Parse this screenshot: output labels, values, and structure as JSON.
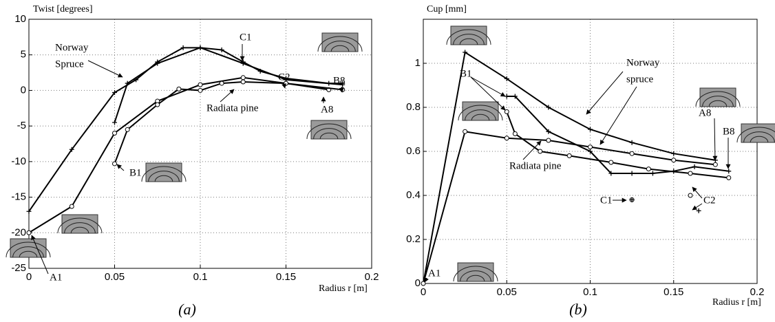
{
  "chart_data": [
    {
      "type": "line",
      "caption": "(a)",
      "ylabel": "Twist [degrees]",
      "xlabel": "Radius r  [m]",
      "xlim": [
        0,
        0.2
      ],
      "ylim": [
        -25,
        10
      ],
      "xticks": [
        0,
        0.05,
        0.1,
        0.15,
        0.2
      ],
      "yticks": [
        -25,
        -20,
        -15,
        -10,
        -5,
        0,
        5,
        10
      ],
      "grid": true,
      "color": "#000000",
      "series": [
        {
          "marker": "plus",
          "line": true,
          "x": [
            0,
            0.025,
            0.05,
            0.0625,
            0.075,
            0.09,
            0.1,
            0.1125,
            0.125,
            0.135,
            0.15,
            0.175,
            0.183
          ],
          "values": [
            -17,
            -8.3,
            -0.3,
            1.5,
            4,
            6,
            6,
            5.7,
            4,
            2.7,
            1.7,
            1.0,
            1.0
          ]
        },
        {
          "marker": "plus",
          "line": true,
          "x": [
            0.05,
            0.0575,
            0.075,
            0.1,
            0.125,
            0.15,
            0.183
          ],
          "values": [
            -4.5,
            1,
            3.8,
            6,
            3.8,
            1.5,
            0.8
          ]
        },
        {
          "marker": "circle",
          "line": true,
          "x": [
            0,
            0.025,
            0.05,
            0.075,
            0.1,
            0.125,
            0.15,
            0.175
          ],
          "values": [
            -20,
            -16.3,
            -6,
            -1.5,
            0.8,
            1.8,
            1,
            0.1
          ]
        },
        {
          "marker": "circle",
          "line": true,
          "x": [
            0.05,
            0.0575,
            0.075,
            0.0875,
            0.1,
            0.1125,
            0.125,
            0.15,
            0.183
          ],
          "values": [
            -10.3,
            -5.5,
            -2,
            0.2,
            0,
            1,
            1.2,
            1,
            0.1
          ]
        }
      ],
      "annotations": [
        "Norway",
        "Spruce",
        "Radiata pine",
        "A1",
        "B1",
        "C1",
        "C2",
        "A8",
        "B8"
      ]
    },
    {
      "type": "line",
      "caption": "(b)",
      "ylabel": "Cup [mm]",
      "xlabel": "Radius r  [m]",
      "xlim": [
        0,
        0.2
      ],
      "ylim": [
        0,
        1.2
      ],
      "xticks": [
        0,
        0.05,
        0.1,
        0.15,
        0.2
      ],
      "yticks": [
        0,
        0.2,
        0.4,
        0.6,
        0.8,
        1
      ],
      "grid": true,
      "color": "#000000",
      "series": [
        {
          "marker": "plus",
          "line": true,
          "x": [
            0,
            0.025,
            0.05,
            0.075,
            0.1,
            0.125,
            0.15,
            0.175
          ],
          "values": [
            0,
            1.05,
            0.93,
            0.8,
            0.7,
            0.64,
            0.59,
            0.56
          ]
        },
        {
          "marker": "circle",
          "line": true,
          "x": [
            0,
            0.025,
            0.05,
            0.075,
            0.1,
            0.125,
            0.15,
            0.175
          ],
          "values": [
            0,
            0.69,
            0.66,
            0.65,
            0.62,
            0.59,
            0.56,
            0.54
          ]
        },
        {
          "marker": "plus",
          "line": true,
          "x": [
            0.05,
            0.055,
            0.075,
            0.1,
            0.1125,
            0.125,
            0.1375,
            0.15,
            0.1625,
            0.183
          ],
          "values": [
            0.85,
            0.85,
            0.69,
            0.6,
            0.5,
            0.5,
            0.5,
            0.51,
            0.53,
            0.51
          ]
        },
        {
          "marker": "circle",
          "line": true,
          "x": [
            0.05,
            0.055,
            0.07,
            0.0875,
            0.1125,
            0.135,
            0.16,
            0.183
          ],
          "values": [
            0.78,
            0.68,
            0.6,
            0.58,
            0.55,
            0.52,
            0.5,
            0.48
          ]
        },
        {
          "marker": "circle",
          "line": false,
          "x": [
            0.125,
            0.16
          ],
          "values": [
            0.38,
            0.4
          ]
        },
        {
          "marker": "plus",
          "line": false,
          "x": [
            0.125,
            0.165
          ],
          "values": [
            0.38,
            0.33
          ]
        }
      ],
      "annotations": [
        "Norway",
        "spruce",
        "Radiata pine",
        "A1",
        "B1",
        "A8",
        "B8",
        "C1",
        "C2"
      ]
    }
  ]
}
